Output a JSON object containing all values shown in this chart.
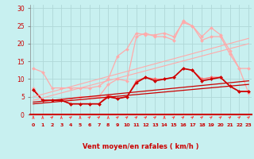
{
  "bg_color": "#c8f0f0",
  "grid_color": "#b0d8d8",
  "title": "Vent moyen/en rafales ( km/h )",
  "xlim": [
    -0.3,
    23.3
  ],
  "ylim": [
    0,
    31
  ],
  "yticks": [
    0,
    5,
    10,
    15,
    20,
    25,
    30
  ],
  "lines": [
    {
      "color": "#ffaaaa",
      "lw": 0.9,
      "marker": "D",
      "markersize": 2.0,
      "x": [
        0,
        1,
        2,
        3,
        4,
        5,
        6,
        7,
        8,
        9,
        10,
        11,
        12,
        13,
        14,
        15,
        16,
        17,
        18,
        19,
        20,
        21,
        22,
        23
      ],
      "y": [
        13,
        12,
        7.5,
        7.5,
        7.5,
        7.5,
        7.5,
        8,
        10,
        16.5,
        18.5,
        23,
        22.5,
        22.5,
        23,
        22,
        26,
        25,
        22,
        24.5,
        22.5,
        18,
        13,
        13
      ]
    },
    {
      "color": "#ffaaaa",
      "lw": 0.9,
      "marker": "D",
      "markersize": 2.0,
      "x": [
        0,
        1,
        2,
        3,
        4,
        5,
        6,
        7,
        8,
        9,
        10,
        11,
        12,
        13,
        14,
        15,
        16,
        17,
        18,
        19,
        20,
        21,
        22,
        23
      ],
      "y": [
        7.5,
        4,
        4,
        4,
        4.5,
        5,
        5,
        5,
        8.5,
        10,
        9.5,
        22,
        23,
        22,
        22,
        21,
        26.5,
        25,
        21,
        22,
        22,
        17,
        13,
        6
      ]
    },
    {
      "color": "#ff6666",
      "lw": 0.9,
      "marker": "D",
      "markersize": 2.0,
      "x": [
        0,
        1,
        2,
        3,
        4,
        5,
        6,
        7,
        8,
        9,
        10,
        11,
        12,
        13,
        14,
        15,
        16,
        17,
        18,
        19,
        20,
        21,
        22,
        23
      ],
      "y": [
        7,
        4,
        4,
        4,
        3,
        3,
        3,
        3,
        5.5,
        4.5,
        5,
        9.5,
        10.5,
        10,
        10,
        10.5,
        13,
        12.5,
        10,
        10.5,
        10.5,
        8,
        6.5,
        6.5
      ]
    },
    {
      "color": "#cc0000",
      "lw": 1.2,
      "marker": "D",
      "markersize": 2.0,
      "x": [
        0,
        1,
        2,
        3,
        4,
        5,
        6,
        7,
        8,
        9,
        10,
        11,
        12,
        13,
        14,
        15,
        16,
        17,
        18,
        19,
        20,
        21,
        22,
        23
      ],
      "y": [
        7,
        4,
        4,
        4,
        3,
        3,
        3,
        3,
        5,
        4.5,
        5,
        9,
        10.5,
        9.5,
        10,
        10.5,
        13,
        12.5,
        9.5,
        10,
        10.5,
        8,
        6.5,
        6.5
      ]
    },
    {
      "color": "#ffaaaa",
      "lw": 0.8,
      "marker": null,
      "x": [
        0,
        23
      ],
      "y": [
        5.0,
        21.5
      ]
    },
    {
      "color": "#ffaaaa",
      "lw": 0.8,
      "marker": null,
      "x": [
        0,
        23
      ],
      "y": [
        4.0,
        20.0
      ]
    },
    {
      "color": "#cc0000",
      "lw": 0.9,
      "marker": null,
      "x": [
        0,
        23
      ],
      "y": [
        3.5,
        9.5
      ]
    },
    {
      "color": "#cc0000",
      "lw": 0.9,
      "marker": null,
      "x": [
        0,
        23
      ],
      "y": [
        3.0,
        8.5
      ]
    }
  ],
  "arrow_angles": [
    90,
    90,
    45,
    90,
    45,
    90,
    45,
    45,
    90,
    45,
    45,
    45,
    45,
    45,
    90,
    45,
    45,
    45,
    45,
    45,
    45,
    45,
    45,
    45
  ],
  "arrow_color": "#ff4444"
}
